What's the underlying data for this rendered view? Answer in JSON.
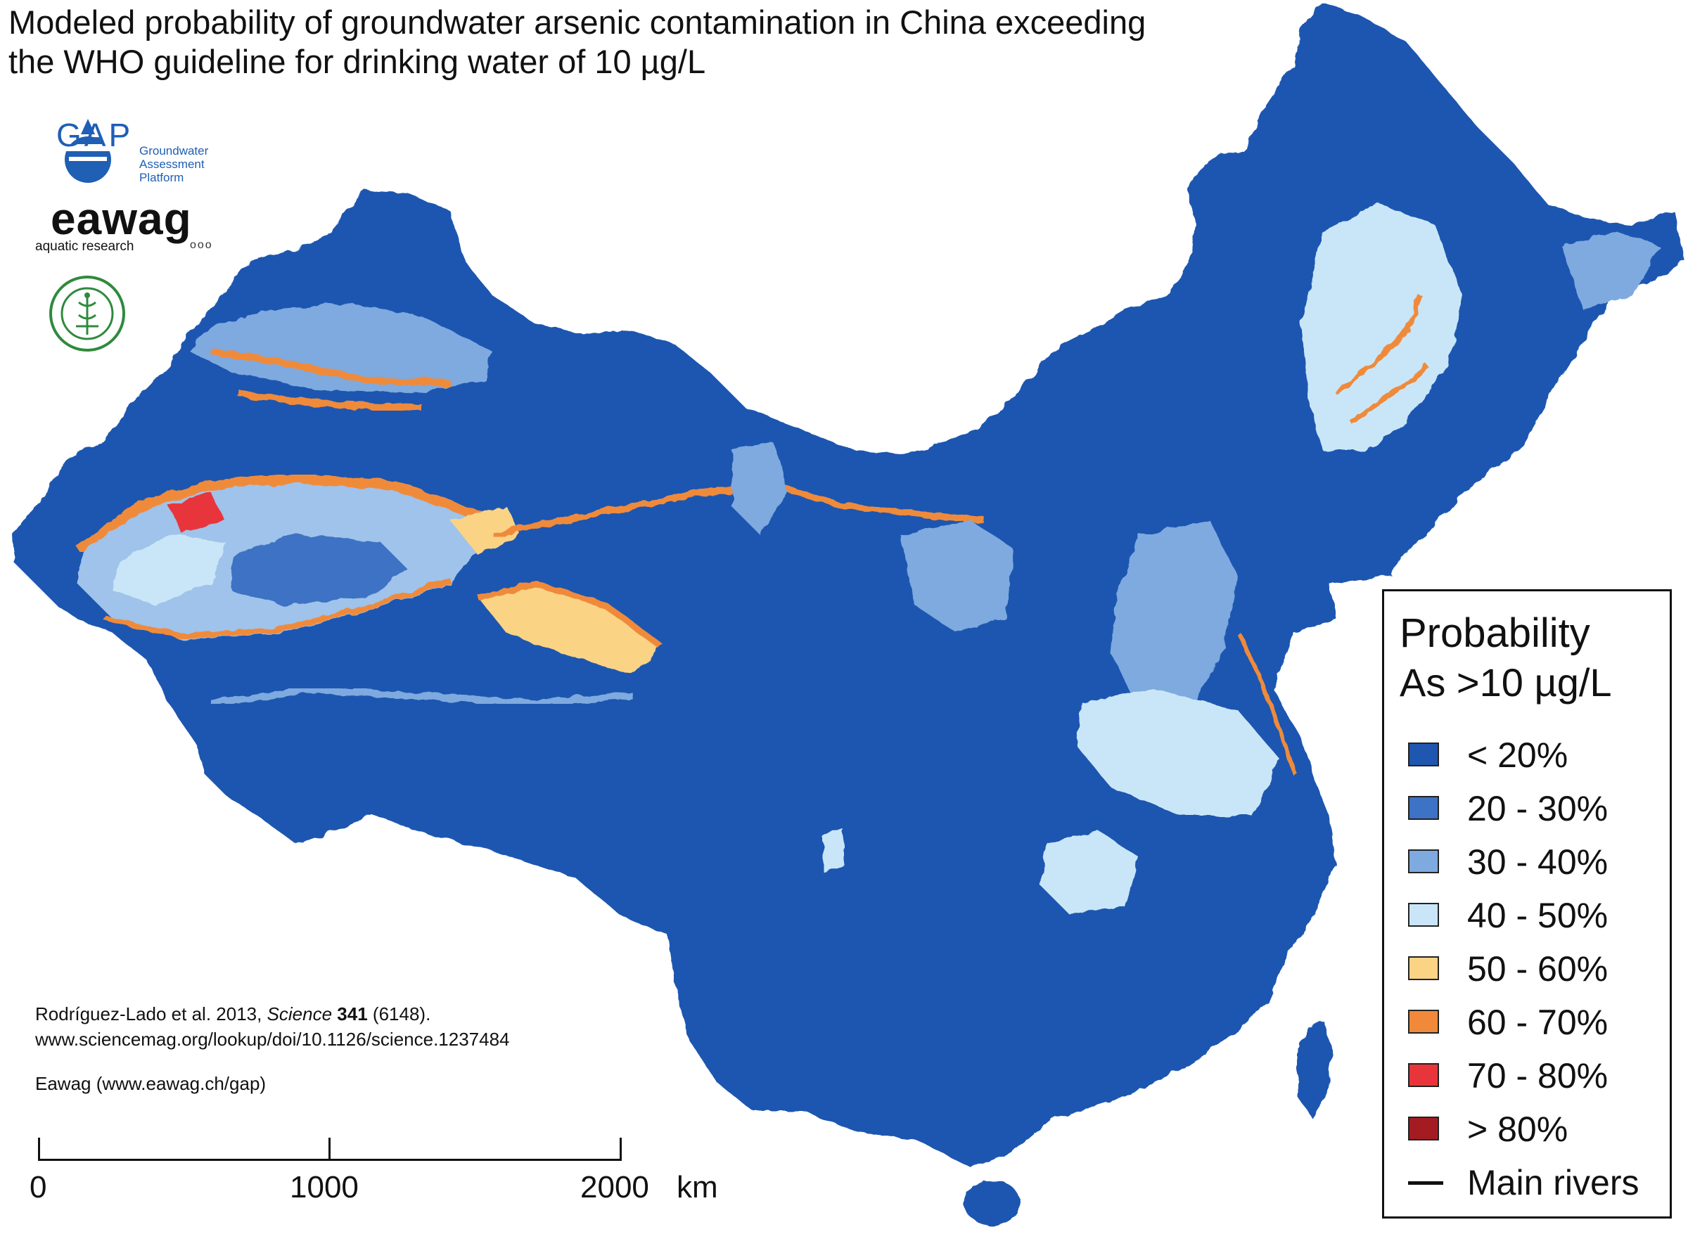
{
  "title": {
    "line1": "Modeled probability of groundwater arsenic contamination in China exceeding",
    "line2": "the WHO guideline for drinking water of 10 µg/L"
  },
  "logos": {
    "gap": {
      "letters": "GAP",
      "lines": [
        "Groundwater",
        "Assessment",
        "Platform"
      ]
    },
    "eawag": {
      "word": "eawag",
      "tagline": "aquatic research",
      "dots": "ooo"
    },
    "cmu": {
      "icon": "china-medical-university-seal-icon"
    }
  },
  "citation": {
    "authors": "Rodríguez-Lado et al. 2013, ",
    "journal": "Science",
    "volume": "341",
    "issue": " (6148).",
    "url": "www.sciencemag.org/lookup/doi/10.1126/science.1237484"
  },
  "credit": "Eawag (www.eawag.ch/gap)",
  "scale_bar": {
    "labels": [
      "0",
      "1000",
      "2000"
    ],
    "unit": "km"
  },
  "legend": {
    "title": "Probability",
    "subtitle": "As >10 µg/L",
    "items": [
      {
        "label": "< 20%",
        "color": "#1f56b0"
      },
      {
        "label": "20 - 30%",
        "color": "#3e72c4"
      },
      {
        "label": "30 - 40%",
        "color": "#7eaadf"
      },
      {
        "label": "40 - 50%",
        "color": "#c9e6f8"
      },
      {
        "label": "50 - 60%",
        "color": "#fbd385"
      },
      {
        "label": "60 - 70%",
        "color": "#f08a3a"
      },
      {
        "label": "70 - 80%",
        "color": "#e8353b"
      },
      {
        "label": "> 80%",
        "color": "#a51b22"
      }
    ],
    "rivers_label": "Main rivers"
  },
  "map_colors": {
    "base": "#1f56b0",
    "mid": "#3e72c4",
    "light": "#7eaadf",
    "pale": "#c9e6f8",
    "yellow": "#fbd385",
    "orange": "#f08a3a",
    "red": "#e8353b"
  }
}
